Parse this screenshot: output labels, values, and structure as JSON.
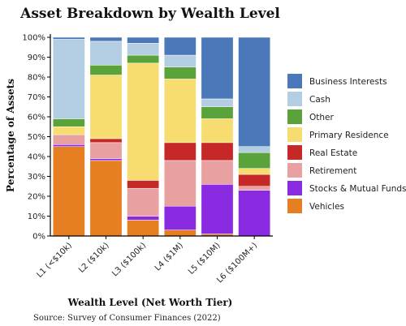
{
  "chart_data": {
    "type": "bar",
    "stacked": true,
    "title": "Asset Breakdown by Wealth Level",
    "xlabel": "Wealth Level (Net Worth Tier)",
    "ylabel": "Percentage of Assets",
    "source": "Source: Survey of Consumer Finances (2022)",
    "ylim": [
      0,
      100
    ],
    "yticks": [
      0,
      10,
      20,
      30,
      40,
      50,
      60,
      70,
      80,
      90,
      100
    ],
    "y_tick_suffix": "%",
    "grid": false,
    "legend_position": "right",
    "categories": [
      "L1 (<$10k)",
      "L2 ($10k)",
      "L3 ($100k)",
      "L4 ($1M)",
      "L5 ($10M)",
      "L6 ($100M+)"
    ],
    "series": [
      {
        "name": "Vehicles",
        "color": "#e67e22",
        "values": [
          45,
          38,
          8,
          3,
          1,
          0
        ]
      },
      {
        "name": "Stocks & Mutual Funds",
        "color": "#8a2be2",
        "values": [
          1,
          1,
          2,
          12,
          25,
          23
        ]
      },
      {
        "name": "Retirement",
        "color": "#e8a0a0",
        "values": [
          5,
          8,
          14,
          23,
          12,
          2
        ]
      },
      {
        "name": "Real Estate",
        "color": "#c62828",
        "values": [
          0,
          2,
          4,
          9,
          9,
          6
        ]
      },
      {
        "name": "Primary Residence",
        "color": "#f7dc6f",
        "values": [
          4,
          32,
          59,
          32,
          12,
          3
        ]
      },
      {
        "name": "Other",
        "color": "#5aa23a",
        "values": [
          4,
          5,
          4,
          6,
          6,
          8
        ]
      },
      {
        "name": "Cash",
        "color": "#b3cde3",
        "values": [
          40,
          12,
          6,
          6,
          4,
          3
        ]
      },
      {
        "name": "Business Interests",
        "color": "#4a78b8",
        "values": [
          1,
          2,
          3,
          9,
          31,
          55
        ]
      }
    ],
    "legend_order": [
      "Business Interests",
      "Cash",
      "Other",
      "Primary Residence",
      "Real Estate",
      "Retirement",
      "Stocks & Mutual Funds",
      "Vehicles"
    ]
  }
}
